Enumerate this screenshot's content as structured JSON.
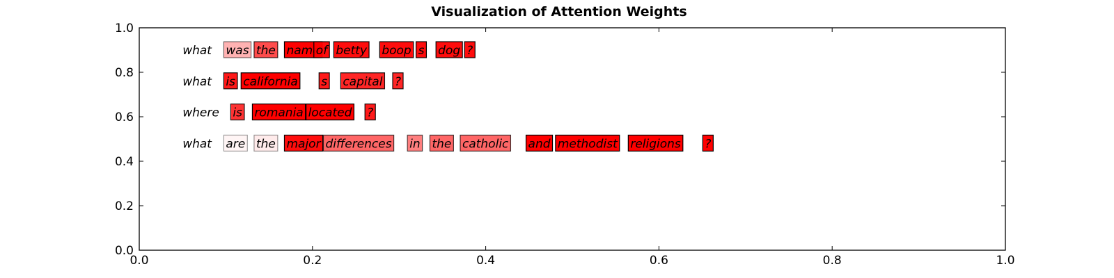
{
  "chart_data": {
    "type": "text",
    "title": "Visualization of Attention Weights",
    "xlabel": "",
    "ylabel": "",
    "xlim": [
      0.0,
      1.0
    ],
    "ylim": [
      0.0,
      1.0
    ],
    "xticks": [
      "0.0",
      "0.2",
      "0.4",
      "0.6",
      "0.8",
      "1.0"
    ],
    "yticks": [
      "0.0",
      "0.2",
      "0.4",
      "0.6",
      "0.8",
      "1.0"
    ],
    "grid": false,
    "highlight_color": "#ff0000",
    "rows": [
      {
        "y": 0.9,
        "tokens": [
          {
            "text": "what",
            "x": 0.05,
            "weight": null
          },
          {
            "text": "was",
            "x": 0.1,
            "weight": 0.3
          },
          {
            "text": "the",
            "x": 0.135,
            "weight": 0.7
          },
          {
            "text": "name",
            "x": 0.17,
            "weight": 1.0
          },
          {
            "text": "of",
            "x": 0.204,
            "weight": 0.95
          },
          {
            "text": "betty",
            "x": 0.227,
            "weight": 0.95
          },
          {
            "text": "boop",
            "x": 0.28,
            "weight": 0.95
          },
          {
            "text": "s",
            "x": 0.322,
            "weight": 0.95
          },
          {
            "text": "dog",
            "x": 0.345,
            "weight": 0.95
          },
          {
            "text": "?",
            "x": 0.378,
            "weight": 0.95
          }
        ]
      },
      {
        "y": 0.76,
        "tokens": [
          {
            "text": "what",
            "x": 0.05,
            "weight": null
          },
          {
            "text": "is",
            "x": 0.1,
            "weight": 0.9
          },
          {
            "text": "california",
            "x": 0.12,
            "weight": 1.0
          },
          {
            "text": "s",
            "x": 0.21,
            "weight": 0.9
          },
          {
            "text": "capital",
            "x": 0.235,
            "weight": 0.85
          },
          {
            "text": "?",
            "x": 0.295,
            "weight": 0.85
          }
        ]
      },
      {
        "y": 0.62,
        "tokens": [
          {
            "text": "where",
            "x": 0.05,
            "weight": null
          },
          {
            "text": "is",
            "x": 0.108,
            "weight": 0.8
          },
          {
            "text": "romania",
            "x": 0.133,
            "weight": 1.0
          },
          {
            "text": "located",
            "x": 0.195,
            "weight": 1.0
          },
          {
            "text": "?",
            "x": 0.263,
            "weight": 0.9
          }
        ]
      },
      {
        "y": 0.48,
        "tokens": [
          {
            "text": "what",
            "x": 0.05,
            "weight": null
          },
          {
            "text": "are",
            "x": 0.1,
            "weight": 0.04
          },
          {
            "text": "the",
            "x": 0.135,
            "weight": 0.08
          },
          {
            "text": "major",
            "x": 0.17,
            "weight": 0.95
          },
          {
            "text": "differences",
            "x": 0.215,
            "weight": 0.6
          },
          {
            "text": "in",
            "x": 0.312,
            "weight": 0.5
          },
          {
            "text": "the",
            "x": 0.338,
            "weight": 0.6
          },
          {
            "text": "catholic",
            "x": 0.373,
            "weight": 0.6
          },
          {
            "text": "and",
            "x": 0.449,
            "weight": 1.0
          },
          {
            "text": "methodist",
            "x": 0.483,
            "weight": 1.0
          },
          {
            "text": "religions",
            "x": 0.567,
            "weight": 1.0
          },
          {
            "text": "?",
            "x": 0.653,
            "weight": 1.0
          }
        ]
      }
    ]
  }
}
